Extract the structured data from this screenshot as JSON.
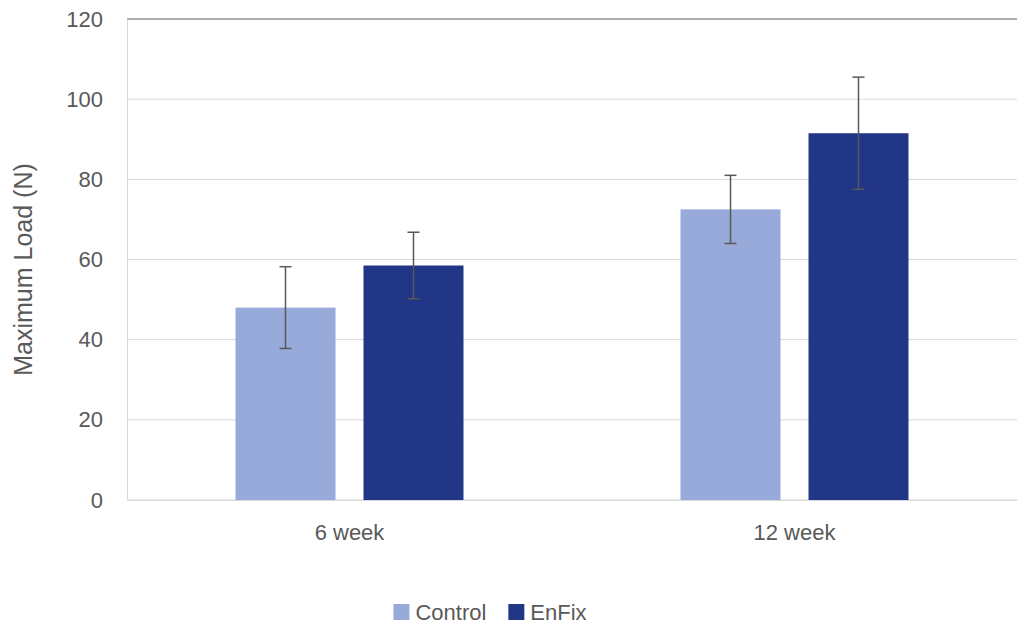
{
  "chart_data": {
    "type": "bar",
    "y_label": "Maximum Load (N)",
    "categories": [
      "6 week",
      "12 week"
    ],
    "series": [
      {
        "name": "Control",
        "color": "#97aad9",
        "values": [
          48,
          72.5
        ],
        "errors": [
          10.2,
          8.5
        ]
      },
      {
        "name": "EnFix",
        "color": "#213686",
        "values": [
          58.5,
          91.5
        ],
        "errors": [
          8.3,
          14
        ]
      }
    ],
    "ylim": [
      0,
      120
    ],
    "yticks": [
      0,
      20,
      40,
      60,
      80,
      100,
      120
    ],
    "grid": true,
    "legend": "bottom"
  }
}
